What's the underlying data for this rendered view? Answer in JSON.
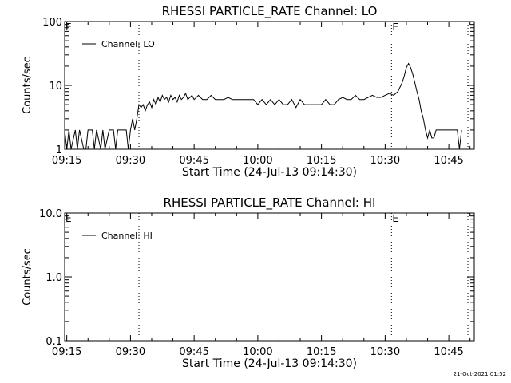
{
  "footer": {
    "timestamp": "21-Oct-2021 01:52"
  },
  "chart_data": [
    {
      "type": "line",
      "title": "RHESSI PARTICLE_RATE Channel: LO",
      "xlabel": "Start Time (24-Jul-13 09:14:30)",
      "ylabel": "Counts/sec",
      "yscale": "log",
      "xlim": [
        "09:14:30",
        "10:51:00"
      ],
      "ylim": [
        1,
        100
      ],
      "x_ticks": [
        "09:15",
        "09:30",
        "09:45",
        "10:00",
        "10:15",
        "10:30",
        "10:45"
      ],
      "y_ticks": [
        "1",
        "10",
        "100"
      ],
      "legend": {
        "position": "top-left",
        "entries": [
          "Channel: LO"
        ]
      },
      "markers": [
        {
          "time": "09:32:00",
          "label": ""
        },
        {
          "time": "10:31:30",
          "label": "E"
        },
        {
          "time": "10:49:30",
          "label": ""
        }
      ],
      "corner_label": "E",
      "series": [
        {
          "name": "Channel: LO",
          "x": [
            "09:14:30",
            "09:15:00",
            "09:15:30",
            "09:16:00",
            "09:17:00",
            "09:17:30",
            "09:18:00",
            "09:19:00",
            "09:19:30",
            "09:20:00",
            "09:21:00",
            "09:21:30",
            "09:22:00",
            "09:23:00",
            "09:23:30",
            "09:24:00",
            "09:25:00",
            "09:26:00",
            "09:26:30",
            "09:27:00",
            "09:28:00",
            "09:28:30",
            "09:29:00",
            "09:29:30",
            "09:30:00",
            "09:30:30",
            "09:31:00",
            "09:31:30",
            "09:32:00",
            "09:32:30",
            "09:33:00",
            "09:33:30",
            "09:34:00",
            "09:34:30",
            "09:35:00",
            "09:35:30",
            "09:36:00",
            "09:36:30",
            "09:37:00",
            "09:37:30",
            "09:38:00",
            "09:38:30",
            "09:39:00",
            "09:39:30",
            "09:40:00",
            "09:40:30",
            "09:41:00",
            "09:41:30",
            "09:42:00",
            "09:42:30",
            "09:43:00",
            "09:43:30",
            "09:44:00",
            "09:44:30",
            "09:45:00",
            "09:46:00",
            "09:47:00",
            "09:48:00",
            "09:49:00",
            "09:50:00",
            "09:51:00",
            "09:52:00",
            "09:53:00",
            "09:54:00",
            "09:55:00",
            "09:56:00",
            "09:57:00",
            "09:58:00",
            "09:59:00",
            "10:00:00",
            "10:01:00",
            "10:02:00",
            "10:03:00",
            "10:04:00",
            "10:05:00",
            "10:06:00",
            "10:07:00",
            "10:08:00",
            "10:09:00",
            "10:10:00",
            "10:11:00",
            "10:12:00",
            "10:13:00",
            "10:14:00",
            "10:15:00",
            "10:16:00",
            "10:17:00",
            "10:18:00",
            "10:19:00",
            "10:20:00",
            "10:21:00",
            "10:22:00",
            "10:23:00",
            "10:24:00",
            "10:25:00",
            "10:26:00",
            "10:27:00",
            "10:28:00",
            "10:29:00",
            "10:30:00",
            "10:31:00",
            "10:32:00",
            "10:33:00",
            "10:34:00",
            "10:34:30",
            "10:35:00",
            "10:35:30",
            "10:36:00",
            "10:36:30",
            "10:37:00",
            "10:37:30",
            "10:38:00",
            "10:38:30",
            "10:39:00",
            "10:39:30",
            "10:40:00",
            "10:40:30",
            "10:41:00",
            "10:41:30",
            "10:42:00",
            "10:43:00",
            "10:44:00",
            "10:45:00",
            "10:46:00",
            "10:46:30",
            "10:47:00",
            "10:47:30",
            "10:48:00"
          ],
          "y": [
            2.0,
            1.0,
            2.0,
            1.0,
            2.0,
            1.0,
            2.0,
            1.0,
            1.0,
            2.0,
            2.0,
            1.0,
            2.0,
            1.0,
            2.0,
            1.0,
            2.0,
            2.0,
            1.0,
            2.0,
            2.0,
            2.0,
            2.0,
            1.0,
            2.0,
            3.0,
            2.0,
            3.0,
            5.0,
            4.5,
            5.0,
            4.0,
            5.0,
            5.5,
            4.5,
            6.0,
            5.0,
            6.5,
            5.5,
            7.0,
            6.0,
            6.5,
            5.5,
            7.0,
            6.0,
            6.5,
            5.5,
            7.0,
            6.0,
            6.5,
            7.5,
            6.0,
            6.5,
            7.0,
            6.0,
            7.0,
            6.0,
            6.0,
            7.0,
            6.0,
            6.0,
            6.0,
            6.5,
            6.0,
            6.0,
            6.0,
            6.0,
            6.0,
            6.0,
            5.0,
            6.0,
            5.0,
            6.0,
            5.0,
            6.0,
            5.0,
            5.0,
            6.0,
            4.5,
            6.0,
            5.0,
            5.0,
            5.0,
            5.0,
            5.0,
            6.0,
            5.0,
            5.0,
            6.0,
            6.5,
            6.0,
            6.0,
            7.0,
            6.0,
            6.0,
            6.5,
            7.0,
            6.5,
            6.5,
            7.0,
            7.5,
            7.0,
            8.0,
            11.0,
            14.0,
            19.0,
            22.0,
            19.0,
            15.0,
            11.0,
            8.0,
            6.0,
            4.0,
            3.0,
            2.0,
            1.5,
            2.0,
            1.5,
            1.5,
            2.0,
            2.0,
            2.0,
            2.0,
            2.0,
            2.0,
            2.0,
            1.0,
            2.0
          ]
        }
      ]
    },
    {
      "type": "line",
      "title": "RHESSI PARTICLE_RATE Channel: HI",
      "xlabel": "Start Time (24-Jul-13 09:14:30)",
      "ylabel": "Counts/sec",
      "yscale": "log",
      "xlim": [
        "09:14:30",
        "10:51:00"
      ],
      "ylim": [
        0.1,
        10
      ],
      "x_ticks": [
        "09:15",
        "09:30",
        "09:45",
        "10:00",
        "10:15",
        "10:30",
        "10:45"
      ],
      "y_ticks": [
        "0.1",
        "1.0",
        "10.0"
      ],
      "legend": {
        "position": "top-left",
        "entries": [
          "Channel: HI"
        ]
      },
      "markers": [
        {
          "time": "09:32:00",
          "label": ""
        },
        {
          "time": "10:31:30",
          "label": "E"
        },
        {
          "time": "10:49:30",
          "label": ""
        }
      ],
      "corner_label": "E",
      "series": [
        {
          "name": "Channel: HI",
          "x": [],
          "y": []
        }
      ]
    }
  ]
}
